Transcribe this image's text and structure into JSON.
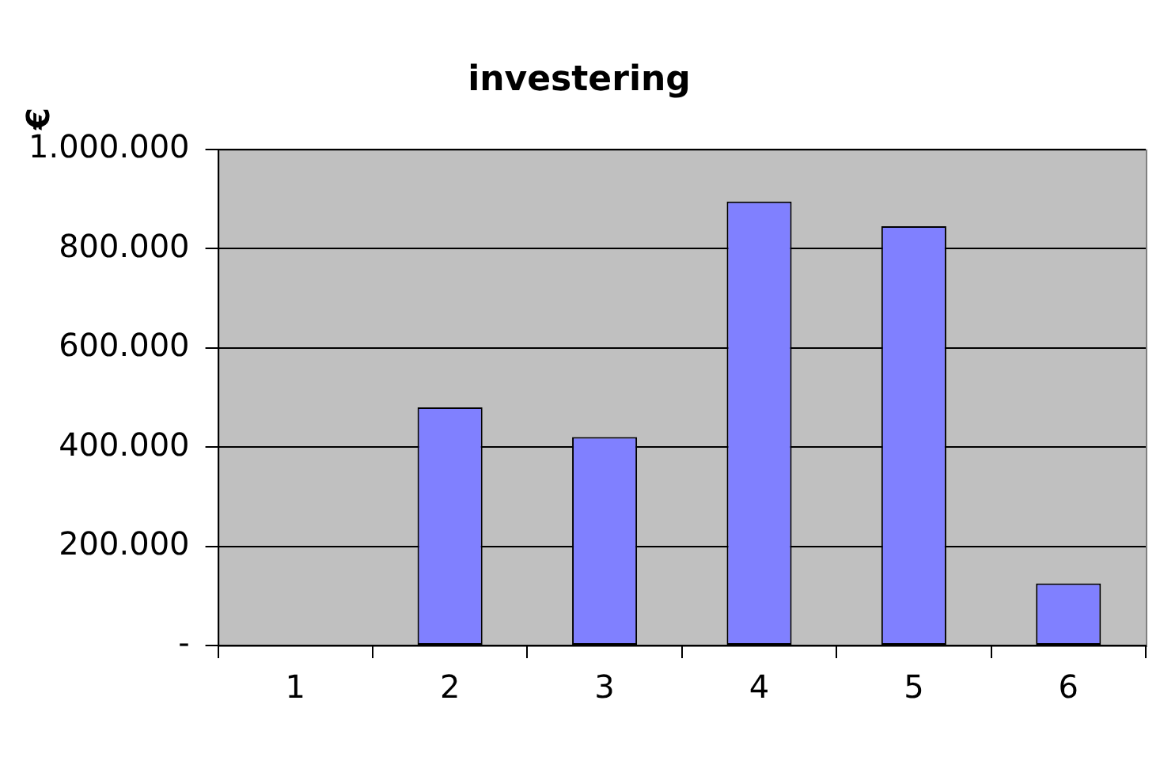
{
  "chart_data": {
    "type": "bar",
    "title": "investering",
    "ylabel": "€",
    "categories": [
      "1",
      "2",
      "3",
      "4",
      "5",
      "6"
    ],
    "values": [
      null,
      480000,
      420000,
      895000,
      845000,
      125000
    ],
    "color": "#8080ff",
    "ylim": [
      0,
      1000000
    ],
    "yticks": [
      {
        "value": 0,
        "label": "-"
      },
      {
        "value": 200000,
        "label": "200.000"
      },
      {
        "value": 400000,
        "label": "400.000"
      },
      {
        "value": 600000,
        "label": "600.000"
      },
      {
        "value": 800000,
        "label": "800.000"
      },
      {
        "value": 1000000,
        "label": "1.000.000"
      }
    ],
    "grid": "y",
    "legend": false
  }
}
